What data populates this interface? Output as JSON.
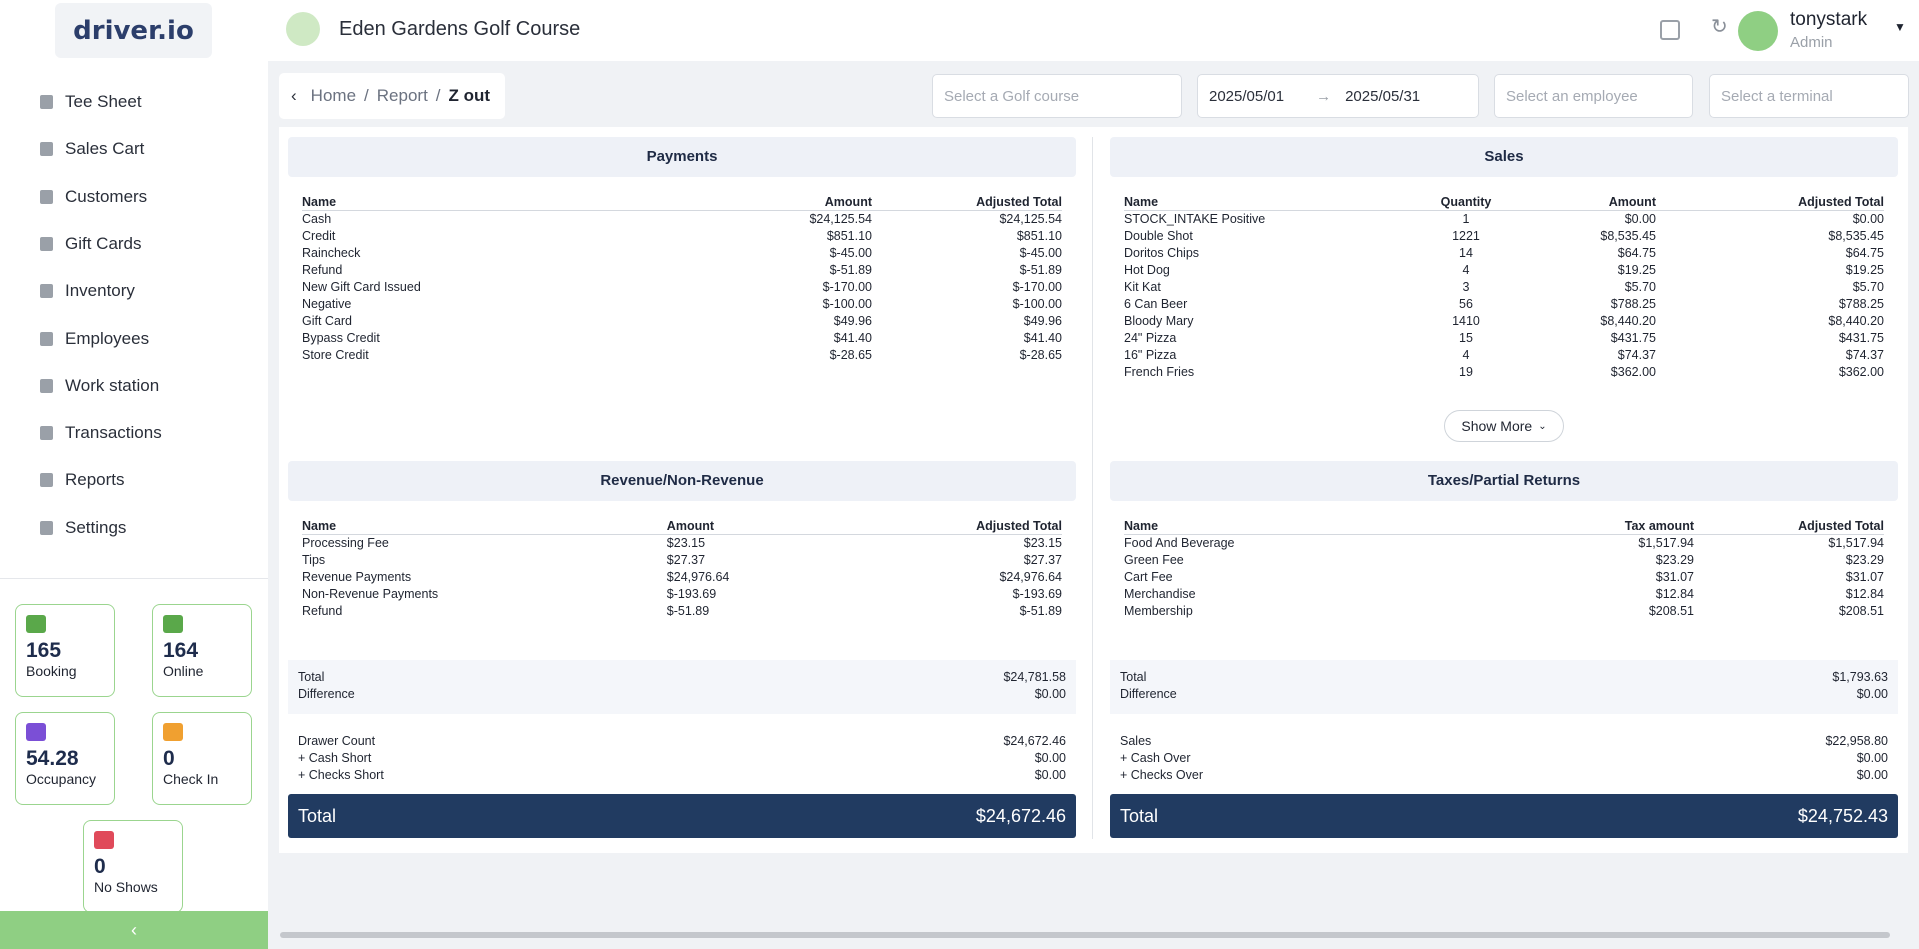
{
  "header": {
    "logo": "driver.io",
    "title": "Eden Gardens Golf Course",
    "user": "tonystark",
    "role": "Admin"
  },
  "sidebar": {
    "nav": [
      "Tee Sheet",
      "Sales Cart",
      "Customers",
      "Gift Cards",
      "Inventory",
      "Employees",
      "Work station",
      "Transactions",
      "Reports",
      "Settings"
    ],
    "stats": [
      {
        "value": 165,
        "label": "Booking"
      },
      {
        "value": 164,
        "label": "Online"
      },
      {
        "value": 54.28,
        "label": "Occupancy"
      },
      {
        "value": 0,
        "label": "Check In"
      },
      {
        "value": 0,
        "label": "No Shows"
      }
    ]
  },
  "breadcrumb": [
    "Home",
    "Report",
    "Z out"
  ],
  "filters": {
    "golf_course": "Select a Golf course",
    "date_from": "2025/05/01",
    "date_to": "2025/05/31",
    "employee": "Select an employee",
    "terminal": "Select a terminal"
  },
  "payments": {
    "title": "Payments",
    "columns": [
      "Name",
      "Amount",
      "Adjusted Total"
    ],
    "rows": [
      [
        "Cash",
        "$24,125.54",
        "$24,125.54"
      ],
      [
        "Credit",
        "$851.10",
        "$851.10"
      ],
      [
        "Raincheck",
        "$-45.00",
        "$-45.00"
      ],
      [
        "Refund",
        "$-51.89",
        "$-51.89"
      ],
      [
        "New Gift Card Issued",
        "$-170.00",
        "$-170.00"
      ],
      [
        "Negative",
        "$-100.00",
        "$-100.00"
      ],
      [
        "Gift Card",
        "$49.96",
        "$49.96"
      ],
      [
        "Bypass Credit",
        "$41.40",
        "$41.40"
      ],
      [
        "Store Credit",
        "$-28.65",
        "$-28.65"
      ]
    ]
  },
  "sales": {
    "title": "Sales",
    "columns": [
      "Name",
      "Quantity",
      "Amount",
      "Adjusted Total"
    ],
    "rows": [
      [
        "STOCK_INTAKE Positive",
        "1",
        "$0.00",
        "$0.00"
      ],
      [
        "Double Shot",
        "1221",
        "$8,535.45",
        "$8,535.45"
      ],
      [
        "Doritos Chips",
        "14",
        "$64.75",
        "$64.75"
      ],
      [
        "Hot Dog",
        "4",
        "$19.25",
        "$19.25"
      ],
      [
        "Kit Kat",
        "3",
        "$5.70",
        "$5.70"
      ],
      [
        "6 Can Beer",
        "56",
        "$788.25",
        "$788.25"
      ],
      [
        "Bloody Mary",
        "1410",
        "$8,440.20",
        "$8,440.20"
      ],
      [
        "24\" Pizza",
        "15",
        "$431.75",
        "$431.75"
      ],
      [
        "16\" Pizza",
        "4",
        "$74.37",
        "$74.37"
      ],
      [
        "French Fries",
        "19",
        "$362.00",
        "$362.00"
      ]
    ],
    "show_more": "Show More"
  },
  "revenue": {
    "title": "Revenue/Non-Revenue",
    "columns": [
      "Name",
      "Amount",
      "Adjusted Total"
    ],
    "rows": [
      [
        "Processing Fee",
        "$23.15",
        "$23.15"
      ],
      [
        "Tips",
        "$27.37",
        "$27.37"
      ],
      [
        "Revenue Payments",
        "$24,976.64",
        "$24,976.64"
      ],
      [
        "Non-Revenue Payments",
        "$-193.69",
        "$-193.69"
      ],
      [
        "Refund",
        "$-51.89",
        "$-51.89"
      ]
    ]
  },
  "taxes": {
    "title": "Taxes/Partial Returns",
    "columns": [
      "Name",
      "Tax amount",
      "Adjusted Total"
    ],
    "rows": [
      [
        "Food And Beverage",
        "$1,517.94",
        "$1,517.94"
      ],
      [
        "Green Fee",
        "$23.29",
        "$23.29"
      ],
      [
        "Cart Fee",
        "$31.07",
        "$31.07"
      ],
      [
        "Merchandise",
        "$12.84",
        "$12.84"
      ],
      [
        "Membership",
        "$208.51",
        "$208.51"
      ]
    ]
  },
  "left_summary": {
    "totals": [
      [
        "Total",
        "$24,781.58"
      ],
      [
        "Difference",
        "$0.00"
      ]
    ],
    "drawer": [
      [
        "Drawer Count",
        "$24,672.46"
      ],
      [
        "+ Cash Short",
        "$0.00"
      ],
      [
        "+ Checks Short",
        "$0.00"
      ]
    ],
    "grand_total": [
      "Total",
      "$24,672.46"
    ]
  },
  "right_summary": {
    "totals": [
      [
        "Total",
        "$1,793.63"
      ],
      [
        "Difference",
        "$0.00"
      ]
    ],
    "drawer": [
      [
        "Sales",
        "$22,958.80"
      ],
      [
        "+ Cash Over",
        "$0.00"
      ],
      [
        "+ Checks Over",
        "$0.00"
      ]
    ],
    "grand_total": [
      "Total",
      "$24,752.43"
    ]
  }
}
